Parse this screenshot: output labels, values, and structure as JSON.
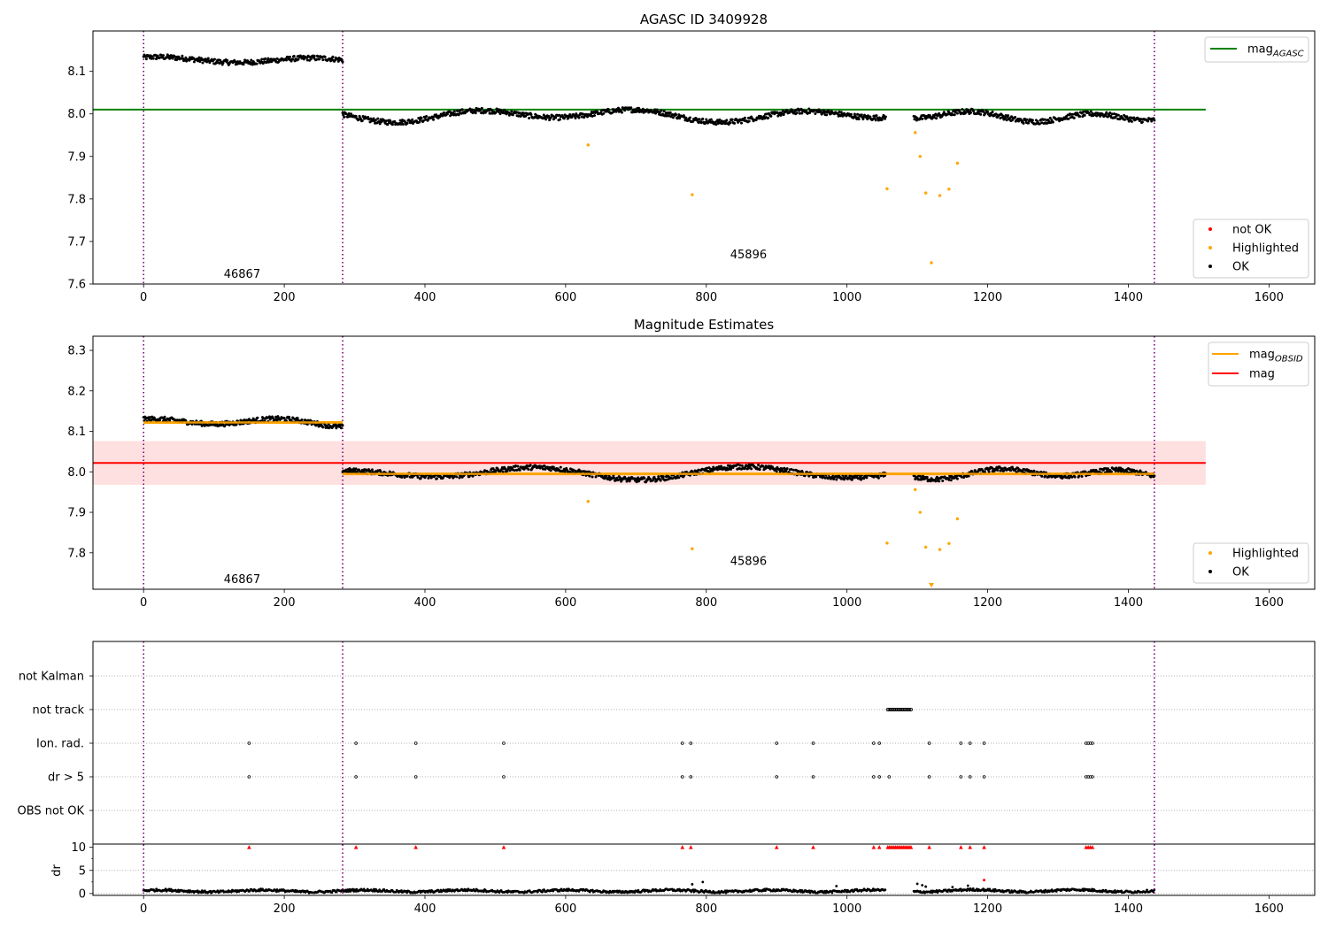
{
  "chart_data": [
    {
      "type": "scatter",
      "title": "AGASC ID 3409928",
      "xlim": [
        -72,
        1665
      ],
      "ylim": [
        7.6,
        8.195
      ],
      "x_ticks": [
        0,
        200,
        400,
        600,
        800,
        1000,
        1200,
        1400,
        1600
      ],
      "y_ticks": [
        7.6,
        7.7,
        7.8,
        7.9,
        8.0,
        8.1
      ],
      "obs_boundaries": [
        0,
        283,
        1437
      ],
      "observations": [
        {
          "label": "46867",
          "x": 140,
          "y": 7.615
        },
        {
          "label": "45896",
          "x": 860,
          "y": 7.66
        }
      ],
      "ok_segments": [
        {
          "x_start": 0,
          "x_end": 283,
          "mean": 8.125,
          "amp": 0.01,
          "noise": 0.006
        },
        {
          "x_start": 283,
          "x_end": 1055,
          "mean": 7.997,
          "amp": 0.014,
          "noise": 0.006
        },
        {
          "x_start": 1095,
          "x_end": 1437,
          "mean": 7.995,
          "amp": 0.012,
          "noise": 0.006
        }
      ],
      "highlighted": [
        {
          "x": 632,
          "y": 7.927
        },
        {
          "x": 780,
          "y": 7.81
        },
        {
          "x": 1057,
          "y": 7.824
        },
        {
          "x": 1097,
          "y": 7.956
        },
        {
          "x": 1104,
          "y": 7.9
        },
        {
          "x": 1112,
          "y": 7.814
        },
        {
          "x": 1120,
          "y": 7.65
        },
        {
          "x": 1132,
          "y": 7.808
        },
        {
          "x": 1145,
          "y": 7.823
        },
        {
          "x": 1157,
          "y": 7.884
        }
      ],
      "hlines": [
        {
          "name": "mag",
          "sub": "AGASC",
          "y": 8.01,
          "x_start": -72,
          "x_end": 1510,
          "color": "#008000"
        }
      ],
      "legend_lines": [
        {
          "name": "mag",
          "sub": "AGASC",
          "color": "#008000"
        }
      ],
      "legend_points": [
        {
          "name": "not OK",
          "color": "#ff0000"
        },
        {
          "name": "Highlighted",
          "color": "#ffa500"
        },
        {
          "name": "OK",
          "color": "#000000"
        }
      ]
    },
    {
      "type": "scatter",
      "title": "Magnitude Estimates",
      "xlim": [
        -72,
        1665
      ],
      "ylim": [
        7.71,
        8.335
      ],
      "x_ticks": [
        0,
        200,
        400,
        600,
        800,
        1000,
        1200,
        1400,
        1600
      ],
      "y_ticks": [
        7.8,
        7.9,
        8.0,
        8.1,
        8.2,
        8.3
      ],
      "obs_boundaries": [
        0,
        283,
        1437
      ],
      "observations": [
        {
          "label": "46867",
          "x": 140,
          "y": 7.725
        },
        {
          "label": "45896",
          "x": 860,
          "y": 7.77
        }
      ],
      "band": {
        "y_low": 7.968,
        "y_high": 8.076,
        "x_start": -72,
        "x_end": 1510,
        "color": "#ff0000"
      },
      "hlines": [
        {
          "name": "mag",
          "sub": "",
          "y": 8.022,
          "x_start": -72,
          "x_end": 1510,
          "color": "#ff0000"
        },
        {
          "name": "mag",
          "sub": "OBSID",
          "y": 8.122,
          "x_start": 0,
          "x_end": 283,
          "color": "#ffa500"
        },
        {
          "name": "mag",
          "sub": "OBSID",
          "y": 7.995,
          "x_start": 283,
          "x_end": 1437,
          "color": "#ffa500"
        }
      ],
      "ok_segments": [
        {
          "x_start": 0,
          "x_end": 283,
          "mean": 8.122,
          "amp": 0.01,
          "noise": 0.006
        },
        {
          "x_start": 283,
          "x_end": 1055,
          "mean": 7.997,
          "amp": 0.014,
          "noise": 0.006
        },
        {
          "x_start": 1095,
          "x_end": 1437,
          "mean": 7.995,
          "amp": 0.012,
          "noise": 0.006
        }
      ],
      "highlighted": [
        {
          "x": 632,
          "y": 7.927
        },
        {
          "x": 780,
          "y": 7.81
        },
        {
          "x": 1057,
          "y": 7.824
        },
        {
          "x": 1097,
          "y": 7.956
        },
        {
          "x": 1104,
          "y": 7.9
        },
        {
          "x": 1112,
          "y": 7.814
        },
        {
          "x": 1132,
          "y": 7.808
        },
        {
          "x": 1145,
          "y": 7.823
        },
        {
          "x": 1157,
          "y": 7.884
        }
      ],
      "off_scale_markers": [
        {
          "x": 1120,
          "color": "#ffa500"
        }
      ],
      "legend_lines": [
        {
          "name": "mag",
          "sub": "OBSID",
          "color": "#ffa500"
        },
        {
          "name": "mag",
          "sub": "",
          "color": "#ff0000"
        }
      ],
      "legend_points": [
        {
          "name": "Highlighted",
          "color": "#ffa500"
        },
        {
          "name": "OK",
          "color": "#000000"
        }
      ]
    },
    {
      "type": "scatter",
      "title": "",
      "xlim": [
        -72,
        1665
      ],
      "obs_boundaries": [
        0,
        283,
        1437
      ],
      "flag_rows": [
        "not Kalman",
        "not track",
        "Ion. rad.",
        "dr > 5",
        "OBS not OK"
      ],
      "flags": {
        "not track": {
          "ranges": [
            [
              1058,
              1093
            ]
          ]
        },
        "Ion. rad.": {
          "points": [
            150,
            302,
            387,
            512,
            766,
            778,
            900,
            952,
            1038,
            1046,
            1117,
            1162,
            1175,
            1195,
            1340,
            1343,
            1346,
            1349
          ]
        },
        "dr > 5": {
          "points": [
            150,
            302,
            387,
            512,
            766,
            778,
            900,
            952,
            1038,
            1046,
            1060,
            1117,
            1162,
            1175,
            1195,
            1340,
            1343,
            1346,
            1349
          ]
        }
      },
      "dr_panel": {
        "ylabel": "dr",
        "ylim": [
          -0.4,
          10.7
        ],
        "y_ticks": [
          0,
          5,
          10
        ],
        "capped_red": [
          150,
          302,
          387,
          512,
          766,
          778,
          900,
          952,
          1038,
          1046,
          1117,
          1162,
          1175,
          1195,
          1340,
          1343,
          1346,
          1349
        ],
        "capped_red_range": [
          1058,
          1093
        ],
        "dr_red_points": [
          {
            "x": 1195,
            "y": 2.9
          }
        ],
        "dr_outliers": [
          {
            "x": 780,
            "y": 2.0
          },
          {
            "x": 795,
            "y": 2.5
          },
          {
            "x": 985,
            "y": 1.6
          },
          {
            "x": 1100,
            "y": 2.1
          },
          {
            "x": 1107,
            "y": 1.8
          },
          {
            "x": 1112,
            "y": 1.5
          },
          {
            "x": 1150,
            "y": 1.4
          },
          {
            "x": 1172,
            "y": 1.7
          }
        ],
        "dr_segments": [
          {
            "x_start": 0,
            "x_end": 1055,
            "mean": 0.55,
            "amp": 0.35
          },
          {
            "x_start": 1095,
            "x_end": 1437,
            "mean": 0.6,
            "amp": 0.4
          }
        ]
      }
    }
  ]
}
